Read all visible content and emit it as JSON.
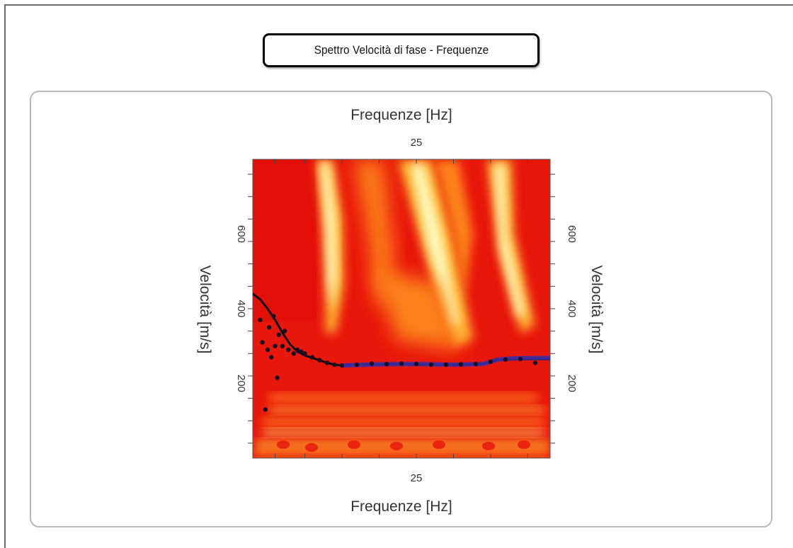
{
  "window": {
    "title": "Spettro Velocità di fase - Frequenze"
  },
  "chart_data": {
    "type": "heatmap",
    "title": "Spettro Velocità di fase - Frequenze",
    "xlabel": "Frequenze [Hz]",
    "ylabel": "Velocità [m/s]",
    "x_tick_labels": [
      "25"
    ],
    "y_tick_labels": [
      "200",
      "400",
      "600"
    ],
    "xlim": [
      3,
      43
    ],
    "ylim": [
      0,
      800
    ],
    "x_ticks": [
      6,
      10,
      15,
      20,
      25,
      30,
      35,
      40
    ],
    "y_ticks": [
      40,
      100,
      160,
      220,
      280,
      340,
      400,
      460,
      520,
      580,
      640,
      700,
      760
    ],
    "colormap": [
      "#e8170c",
      "#ff4a0d",
      "#ff8a1c",
      "#ffc236",
      "#ffee7a",
      "#ffffc8"
    ],
    "series": [
      {
        "name": "",
        "style": "line",
        "color": "#0d0a16",
        "x": [
          3,
          4,
          5,
          6,
          7,
          8,
          9,
          10,
          11,
          12,
          13,
          14,
          15,
          16,
          18,
          20,
          22,
          24,
          26,
          28,
          30,
          32,
          34,
          35,
          36,
          38,
          40,
          43
        ],
        "y": [
          440,
          425,
          400,
          370,
          335,
          305,
          285,
          275,
          268,
          262,
          255,
          250,
          248,
          250,
          252,
          252,
          253,
          252,
          250,
          250,
          250,
          252,
          253,
          258,
          262,
          264,
          265,
          265
        ]
      },
      {
        "name": "",
        "style": "band",
        "color": "#3a2ea6",
        "x": [
          15,
          20,
          25,
          30,
          34,
          35,
          36,
          38,
          40,
          43
        ],
        "y": [
          248,
          251,
          252,
          250,
          252,
          258,
          264,
          267,
          268,
          268
        ]
      },
      {
        "name": "",
        "style": "points",
        "color": "#1a1020",
        "x": [
          4,
          4.3,
          4.7,
          5,
          5.2,
          5.5,
          5.8,
          6,
          6.3,
          6.5,
          7,
          7.3,
          7.8,
          8.5,
          9,
          9.5,
          10,
          11,
          12,
          13,
          14,
          15,
          17,
          19,
          21,
          23,
          25,
          27,
          29,
          31,
          33,
          35,
          37,
          39,
          41
        ],
        "y": [
          370,
          310,
          130,
          290,
          350,
          270,
          380,
          300,
          215,
          330,
          300,
          340,
          290,
          280,
          290,
          285,
          280,
          270,
          262,
          255,
          250,
          248,
          250,
          253,
          252,
          253,
          252,
          250,
          250,
          251,
          252,
          258,
          264,
          265,
          255
        ]
      }
    ],
    "legend": "none",
    "grid": false
  }
}
